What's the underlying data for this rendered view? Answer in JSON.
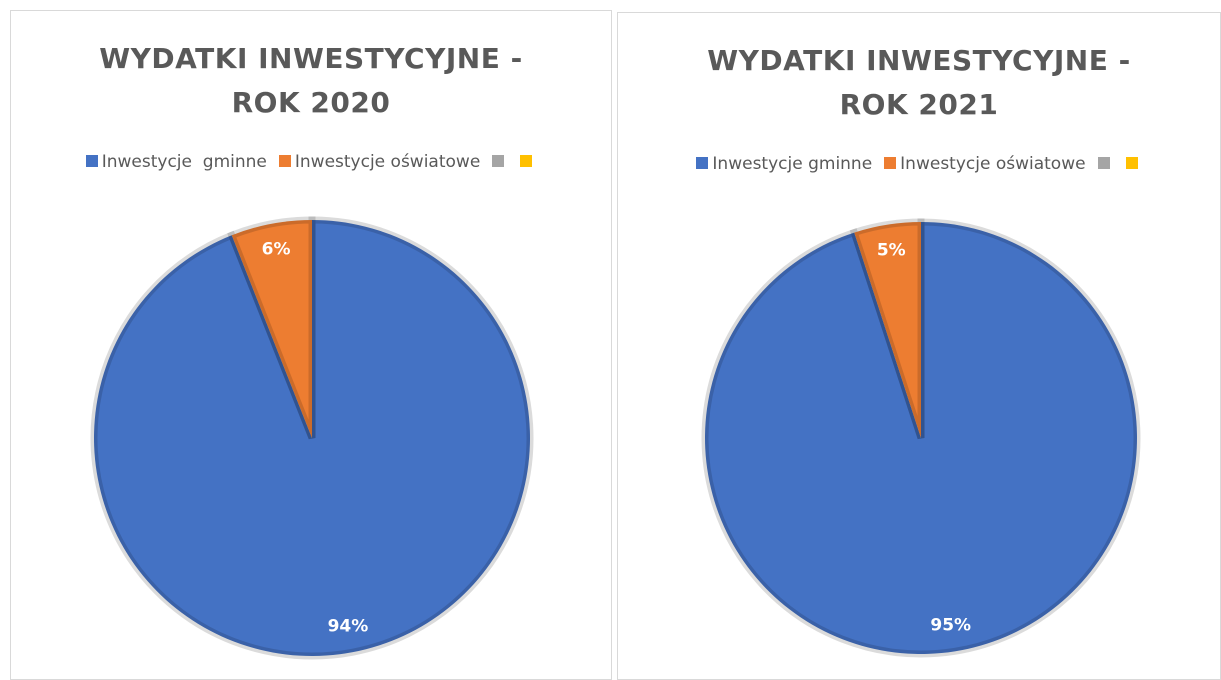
{
  "chart_data": [
    {
      "type": "pie",
      "title": "WYDATKI INWESTYCYJNE - ROK 2020",
      "categories": [
        "Inwestycje  gminne",
        "Inwestycje oświatowe",
        null,
        null
      ],
      "values": [
        94,
        6,
        0,
        0
      ],
      "value_labels": [
        "94%",
        "6%",
        null,
        null
      ],
      "colors": [
        "#4472c4",
        "#ed7d31",
        "#a5a5a5",
        "#ffc000"
      ],
      "legend": "top"
    },
    {
      "type": "pie",
      "title": "WYDATKI INWESTYCYJNE - ROK 2021",
      "categories": [
        "Inwestycje gminne",
        "Inwestycje oświatowe",
        null,
        null
      ],
      "values": [
        95,
        5,
        0,
        0
      ],
      "value_labels": [
        "95%",
        "5%",
        null,
        null
      ],
      "colors": [
        "#4472c4",
        "#ed7d31",
        "#a5a5a5",
        "#ffc000"
      ],
      "legend": "top"
    }
  ]
}
